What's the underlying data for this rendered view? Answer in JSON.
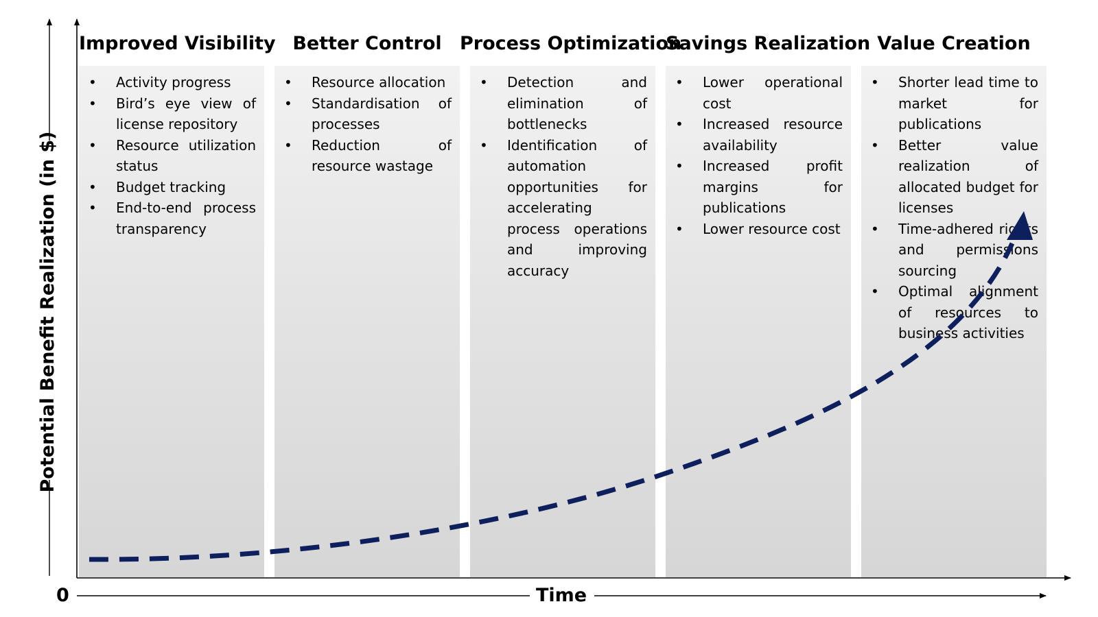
{
  "axes": {
    "y_label": "Potential Benefit Realization (in $)",
    "x_label": "Time",
    "origin_label": "0"
  },
  "phases": [
    {
      "title": "Improved Visibility",
      "bullets": [
        "Activity progress",
        "Bird’s eye view of license repository",
        "Resource utilization status",
        "Budget tracking",
        "End-to-end process transparency"
      ]
    },
    {
      "title": "Better Control",
      "bullets": [
        "Resource allocation",
        "Standardisation of processes",
        "Reduction of resource wastage"
      ]
    },
    {
      "title": "Process Optimization",
      "bullets": [
        "Detection and elimination of bottlenecks",
        "Identification of automation opportunities for accelerating process operations and improving accuracy"
      ]
    },
    {
      "title": "Savings Realization",
      "bullets": [
        "Lower operational cost",
        "Increased resource availability",
        "Increased profit margins for publications",
        "Lower resource cost"
      ]
    },
    {
      "title": "Value Creation",
      "bullets": [
        "Shorter lead time to market for publications",
        "Better value realization of allocated budget for licenses",
        "Time-adhered rights and permissions sourcing",
        "Optimal alignment of resources to business activities"
      ]
    }
  ],
  "colors": {
    "curve": "#0d1f5c",
    "axis": "#000000"
  }
}
